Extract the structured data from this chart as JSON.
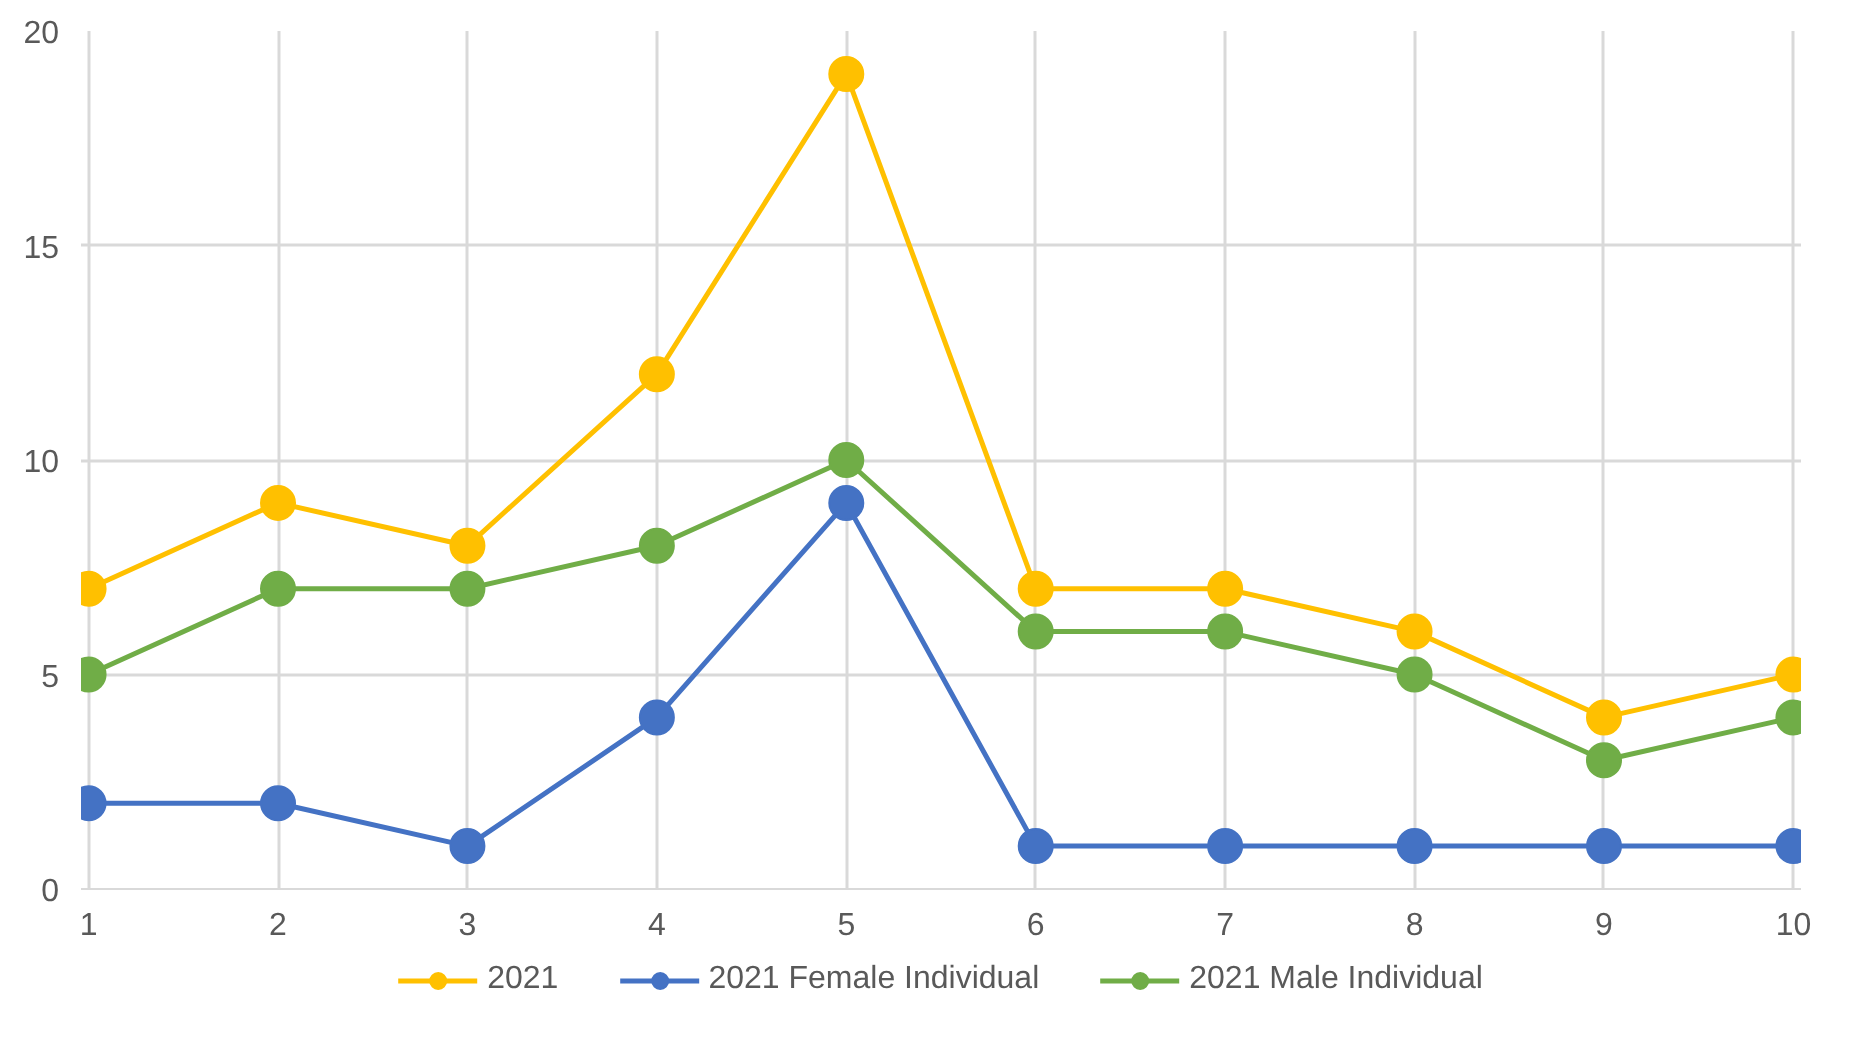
{
  "chart_data": {
    "type": "line",
    "categories": [
      "1",
      "2",
      "3",
      "4",
      "5",
      "6",
      "7",
      "8",
      "9",
      "10"
    ],
    "series": [
      {
        "name": "2021",
        "color": "#ffc000",
        "values": [
          7,
          9,
          8,
          12,
          19,
          7,
          7,
          6,
          4,
          5
        ]
      },
      {
        "name": "2021 Female Individual",
        "color": "#4472c4",
        "values": [
          2,
          2,
          1,
          4,
          9,
          1,
          1,
          1,
          1,
          1
        ]
      },
      {
        "name": "2021 Male Individual",
        "color": "#70ad47",
        "values": [
          5,
          7,
          7,
          8,
          10,
          6,
          6,
          5,
          3,
          4
        ]
      }
    ],
    "ylim": [
      0,
      20
    ],
    "yticks": [
      0,
      5,
      10,
      15,
      20
    ],
    "grid": true,
    "legend": "bottom",
    "marker": "circle",
    "line_style": "solid"
  }
}
